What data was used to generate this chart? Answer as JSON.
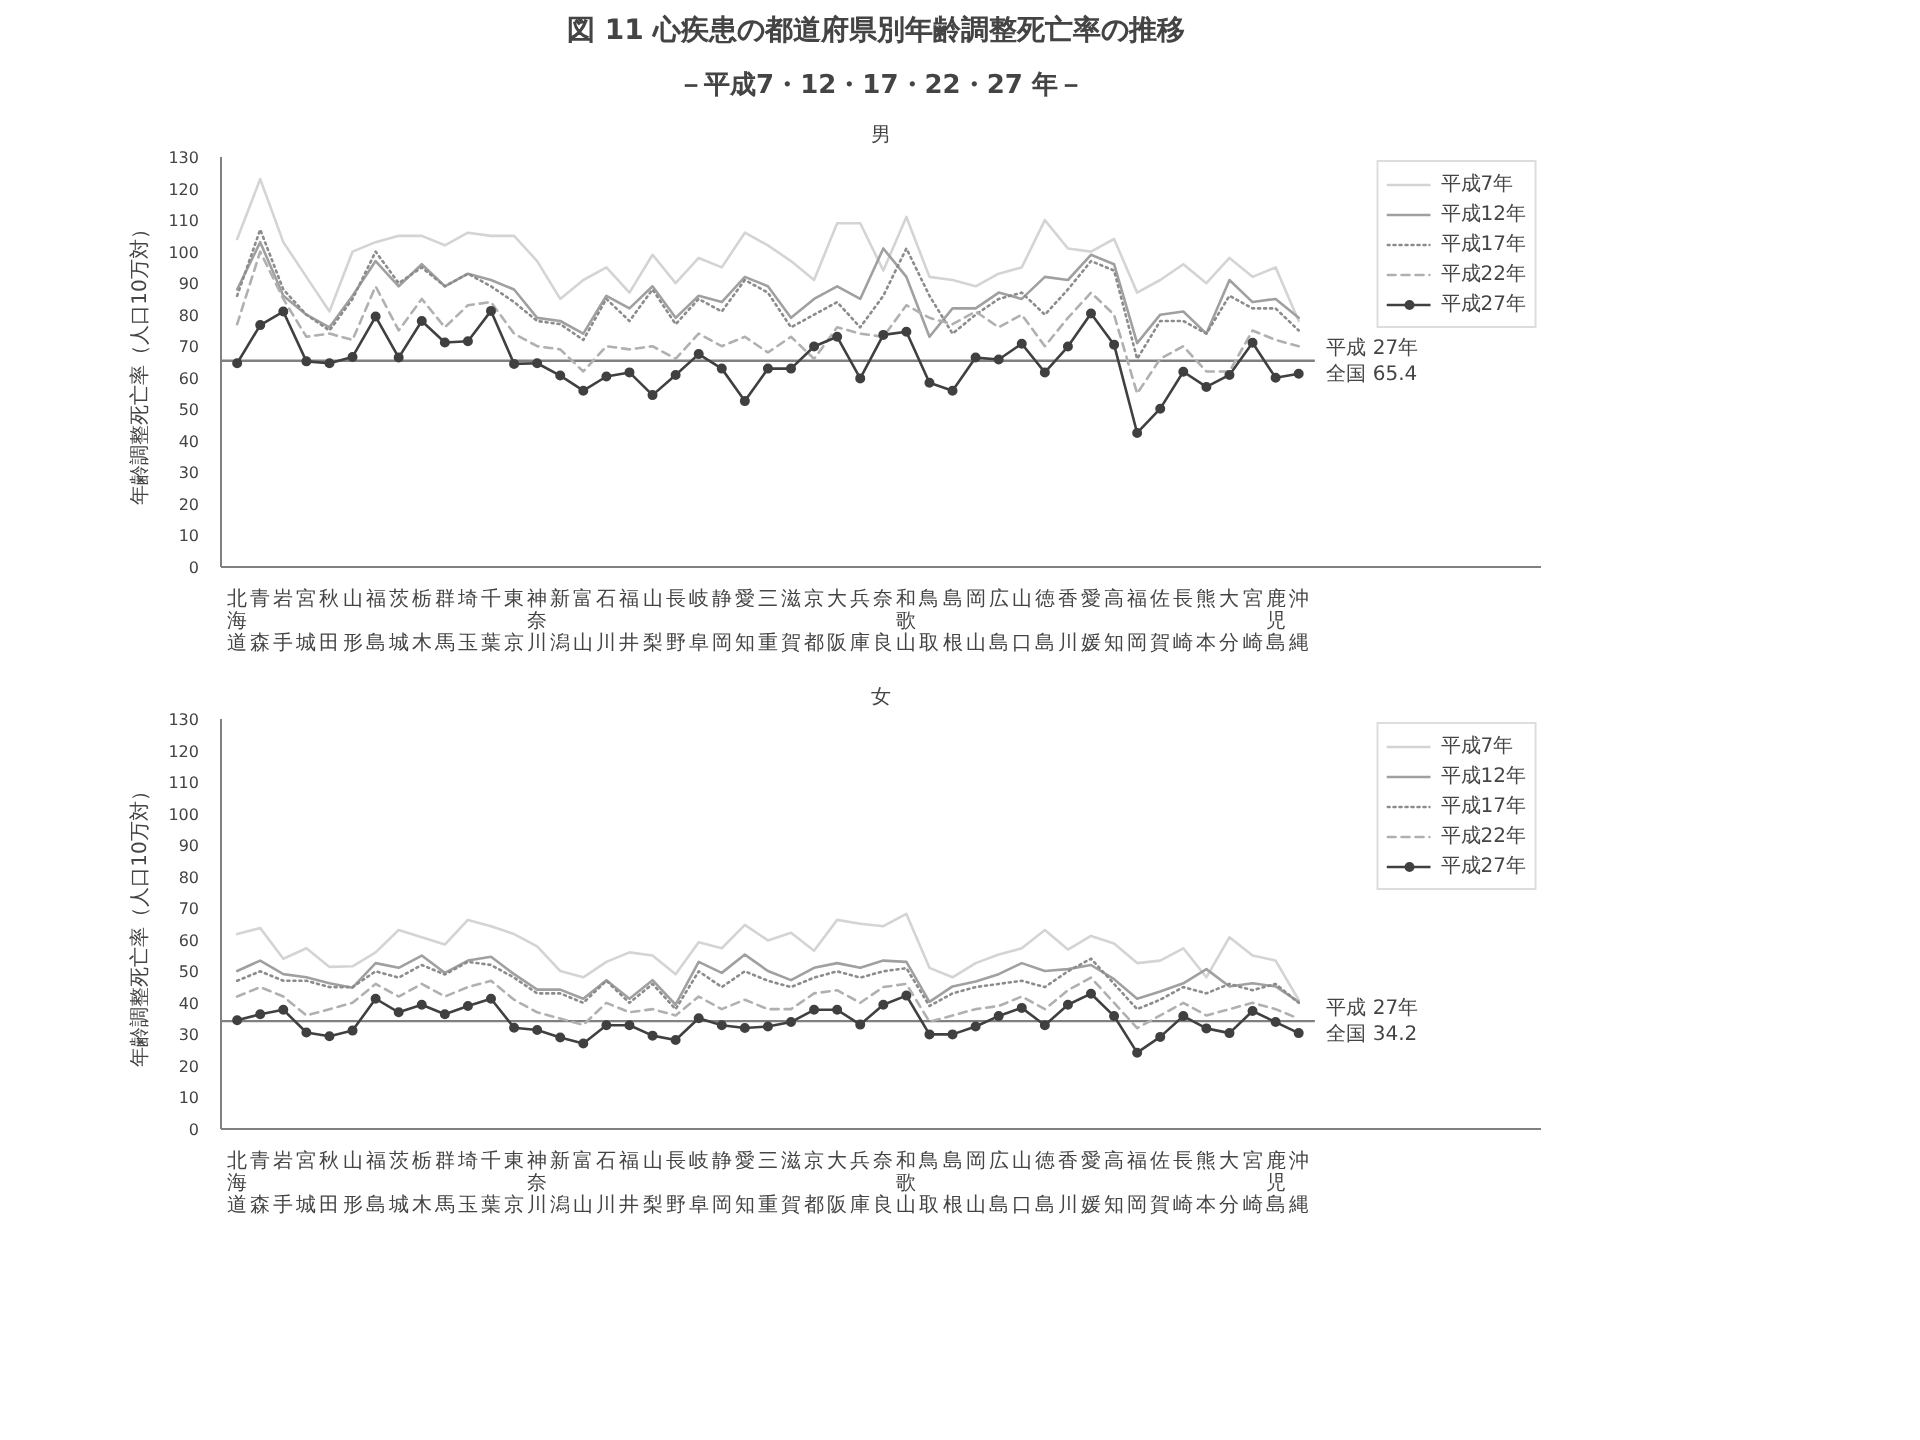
{
  "chart_data": [
    {
      "type": "line",
      "title": "図 11  心疾患の都道府県別年齢調整死亡率の推移",
      "subtitle": "－平成7・12・17・22・27 年－",
      "annotations": [
        "男"
      ],
      "ylabel": "年齢調整死亡率（人口10万対）",
      "categories": [
        "北海道",
        "青森",
        "岩手",
        "宮城",
        "秋田",
        "山形",
        "福島",
        "茨城",
        "栃木",
        "群馬",
        "埼玉",
        "千葉",
        "東京",
        "神奈川",
        "新潟",
        "富山",
        "石川",
        "福井",
        "山梨",
        "長野",
        "岐阜",
        "静岡",
        "愛知",
        "三重",
        "滋賀",
        "京都",
        "大阪",
        "兵庫",
        "奈良",
        "和歌山",
        "鳥取",
        "島根",
        "岡山",
        "広島",
        "山口",
        "徳島",
        "香川",
        "愛媛",
        "高知",
        "福岡",
        "佐賀",
        "長崎",
        "熊本",
        "大分",
        "宮崎",
        "鹿児島",
        "沖縄"
      ],
      "ylim": [
        0,
        130
      ],
      "yticks": [
        0,
        10,
        20,
        30,
        40,
        50,
        60,
        70,
        80,
        90,
        100,
        110,
        120,
        130
      ],
      "grid": false,
      "legend": "top right",
      "ref_lines": [
        {
          "axis": "y",
          "value": 65.4,
          "label": [
            "平成 27年",
            "全国 65.4"
          ],
          "color": "#808080"
        }
      ],
      "series": [
        {
          "name": "平成7年",
          "color": "#d4d4d4",
          "line_style": "solid",
          "marker": "none",
          "values": [
            104,
            123,
            103,
            92,
            81,
            100,
            103,
            105,
            105,
            102,
            106,
            105,
            105,
            97,
            85,
            91,
            95,
            87,
            99,
            90,
            98,
            95,
            106,
            102,
            97,
            91,
            109,
            109,
            94,
            111,
            92,
            91,
            89,
            93,
            95,
            110,
            101,
            100,
            104,
            87,
            91,
            96,
            90,
            98,
            92,
            95,
            78
          ]
        },
        {
          "name": "平成12年",
          "color": "#a0a0a0",
          "line_style": "solid",
          "marker": "none",
          "values": [
            88,
            103,
            86,
            80,
            76,
            86,
            97,
            89,
            96,
            89,
            93,
            91,
            88,
            79,
            78,
            74,
            86,
            82,
            89,
            79,
            86,
            84,
            92,
            89,
            79,
            85,
            89,
            85,
            101,
            92,
            73,
            82,
            82,
            87,
            85,
            92,
            91,
            99,
            96,
            71,
            80,
            81,
            74,
            91,
            84,
            85,
            79
          ]
        },
        {
          "name": "平成17年",
          "color": "#8c8c8c",
          "line_style": "dotted",
          "marker": "none",
          "values": [
            86,
            107,
            88,
            80,
            75,
            85,
            100,
            90,
            95,
            89,
            93,
            89,
            84,
            78,
            77,
            72,
            85,
            78,
            88,
            77,
            85,
            81,
            91,
            87,
            76,
            80,
            84,
            76,
            86,
            101,
            86,
            74,
            80,
            85,
            87,
            80,
            88,
            97,
            94,
            66,
            78,
            78,
            74,
            86,
            82,
            82,
            75
          ]
        },
        {
          "name": "平成22年",
          "color": "#b0b0b0",
          "line_style": "dashed",
          "marker": "none",
          "values": [
            77,
            100,
            85,
            73,
            74,
            72,
            89,
            75,
            85,
            76,
            83,
            84,
            74,
            70,
            69,
            62,
            70,
            69,
            70,
            66,
            74,
            70,
            73,
            68,
            73,
            66,
            76,
            74,
            73,
            83,
            79,
            77,
            81,
            76,
            80,
            70,
            79,
            87,
            80,
            55,
            66,
            70,
            62,
            62,
            75,
            72,
            70
          ]
        },
        {
          "name": "平成27年",
          "color": "#404040",
          "line_style": "solid",
          "marker": "circle",
          "values": [
            64.6,
            76.7,
            81,
            65.2,
            64.6,
            66.6,
            79.4,
            66.4,
            78,
            71.2,
            71.6,
            81.2,
            64.4,
            64.6,
            60.7,
            55.9,
            60.4,
            61.7,
            54.5,
            60.9,
            67.5,
            62.9,
            52.6,
            62.9,
            62.9,
            69.9,
            73,
            59.8,
            73.6,
            74.6,
            58.4,
            55.9,
            66.4,
            65.8,
            70.8,
            61.7,
            69.9,
            80.4,
            70.5,
            42.5,
            50.2,
            61.9,
            57.1,
            60.9,
            71.1,
            60,
            61.3
          ]
        }
      ]
    },
    {
      "type": "line",
      "title": "女",
      "ylabel": "年齢調整死亡率（人口10万対）",
      "categories": [
        "北海道",
        "青森",
        "岩手",
        "宮城",
        "秋田",
        "山形",
        "福島",
        "茨城",
        "栃木",
        "群馬",
        "埼玉",
        "千葉",
        "東京",
        "神奈川",
        "新潟",
        "富山",
        "石川",
        "福井",
        "山梨",
        "長野",
        "岐阜",
        "静岡",
        "愛知",
        "三重",
        "滋賀",
        "京都",
        "大阪",
        "兵庫",
        "奈良",
        "和歌山",
        "鳥取",
        "島根",
        "岡山",
        "広島",
        "山口",
        "徳島",
        "香川",
        "愛媛",
        "高知",
        "福岡",
        "佐賀",
        "長崎",
        "熊本",
        "大分",
        "宮崎",
        "鹿児島",
        "沖縄"
      ],
      "ylim": [
        0,
        130
      ],
      "yticks": [
        0,
        10,
        20,
        30,
        40,
        50,
        60,
        70,
        80,
        90,
        100,
        110,
        120,
        130
      ],
      "grid": false,
      "legend": "top right",
      "ref_lines": [
        {
          "axis": "y",
          "value": 34.2,
          "label": [
            "平成 27年",
            "全国 34.2"
          ],
          "color": "#808080"
        }
      ],
      "series": [
        {
          "name": "平成7年",
          "color": "#d4d4d4",
          "line_style": "solid",
          "marker": "none",
          "values": [
            61.8,
            63.7,
            54,
            57.3,
            51.4,
            51.6,
            56,
            63.1,
            60.8,
            58.5,
            66.3,
            64.3,
            61.8,
            57.9,
            50.1,
            48.1,
            53,
            56,
            55,
            49.1,
            59.2,
            57.3,
            64.7,
            59.8,
            62.2,
            56.5,
            66.3,
            65.1,
            64.3,
            68.2,
            51.1,
            48.1,
            52.6,
            55.3,
            57.3,
            63.1,
            56.9,
            61.2,
            58.8,
            52.6,
            53.4,
            57.3,
            48.1,
            60.8,
            55,
            53.4,
            40.9
          ]
        },
        {
          "name": "平成12年",
          "color": "#a0a0a0",
          "line_style": "solid",
          "marker": "none",
          "values": [
            50.1,
            53.4,
            49.1,
            48.1,
            46.2,
            44.8,
            52.6,
            51.1,
            55,
            49.5,
            53.4,
            54.6,
            49.1,
            44.2,
            44.2,
            41.3,
            47.2,
            41.3,
            47.2,
            39.4,
            53,
            49.5,
            55.3,
            50.1,
            47.2,
            51.1,
            52.6,
            51.1,
            53.4,
            53,
            40.3,
            45.2,
            46.8,
            49.1,
            52.6,
            50.1,
            50.7,
            52,
            47.5,
            41.3,
            43.6,
            46.2,
            50.7,
            45.2,
            46.2,
            45.2,
            40.3
          ]
        },
        {
          "name": "平成17年",
          "color": "#8c8c8c",
          "line_style": "dotted",
          "marker": "none",
          "values": [
            47,
            50,
            47,
            47,
            45,
            45,
            50,
            48,
            52,
            49,
            53,
            52,
            48,
            43,
            43,
            40,
            47,
            40,
            46,
            38,
            50,
            45,
            50,
            47,
            45,
            48,
            50,
            48,
            50,
            51,
            39,
            43,
            45,
            46,
            47,
            45,
            50,
            54,
            46,
            38,
            41,
            45,
            43,
            46,
            44,
            46,
            40
          ]
        },
        {
          "name": "平成22年",
          "color": "#b0b0b0",
          "line_style": "dashed",
          "marker": "none",
          "values": [
            42,
            45,
            42,
            36,
            38,
            40,
            46,
            42,
            46,
            42,
            45,
            47,
            41,
            37,
            35,
            33,
            40,
            37,
            38,
            36,
            42,
            38,
            41,
            38,
            38,
            43,
            44,
            40,
            45,
            46,
            34,
            36,
            38,
            39,
            42,
            38,
            44,
            48,
            40,
            32,
            36,
            40,
            36,
            38,
            40,
            38,
            35
          ]
        },
        {
          "name": "平成27年",
          "color": "#404040",
          "line_style": "solid",
          "marker": "circle",
          "values": [
            34.5,
            36.4,
            37.8,
            30.6,
            29.4,
            31.2,
            41.3,
            37,
            39.4,
            36.4,
            39,
            41.3,
            32.1,
            31.4,
            29,
            27.1,
            32.9,
            32.9,
            29.6,
            28.2,
            35.1,
            32.9,
            32,
            32.5,
            33.9,
            37.8,
            37.8,
            33.1,
            39.4,
            42.3,
            30,
            30,
            32.5,
            35.8,
            38.4,
            32.9,
            39.4,
            42.9,
            35.8,
            24.2,
            29.2,
            35.8,
            31.9,
            30.4,
            37.4,
            33.9,
            30.4
          ]
        }
      ]
    }
  ]
}
